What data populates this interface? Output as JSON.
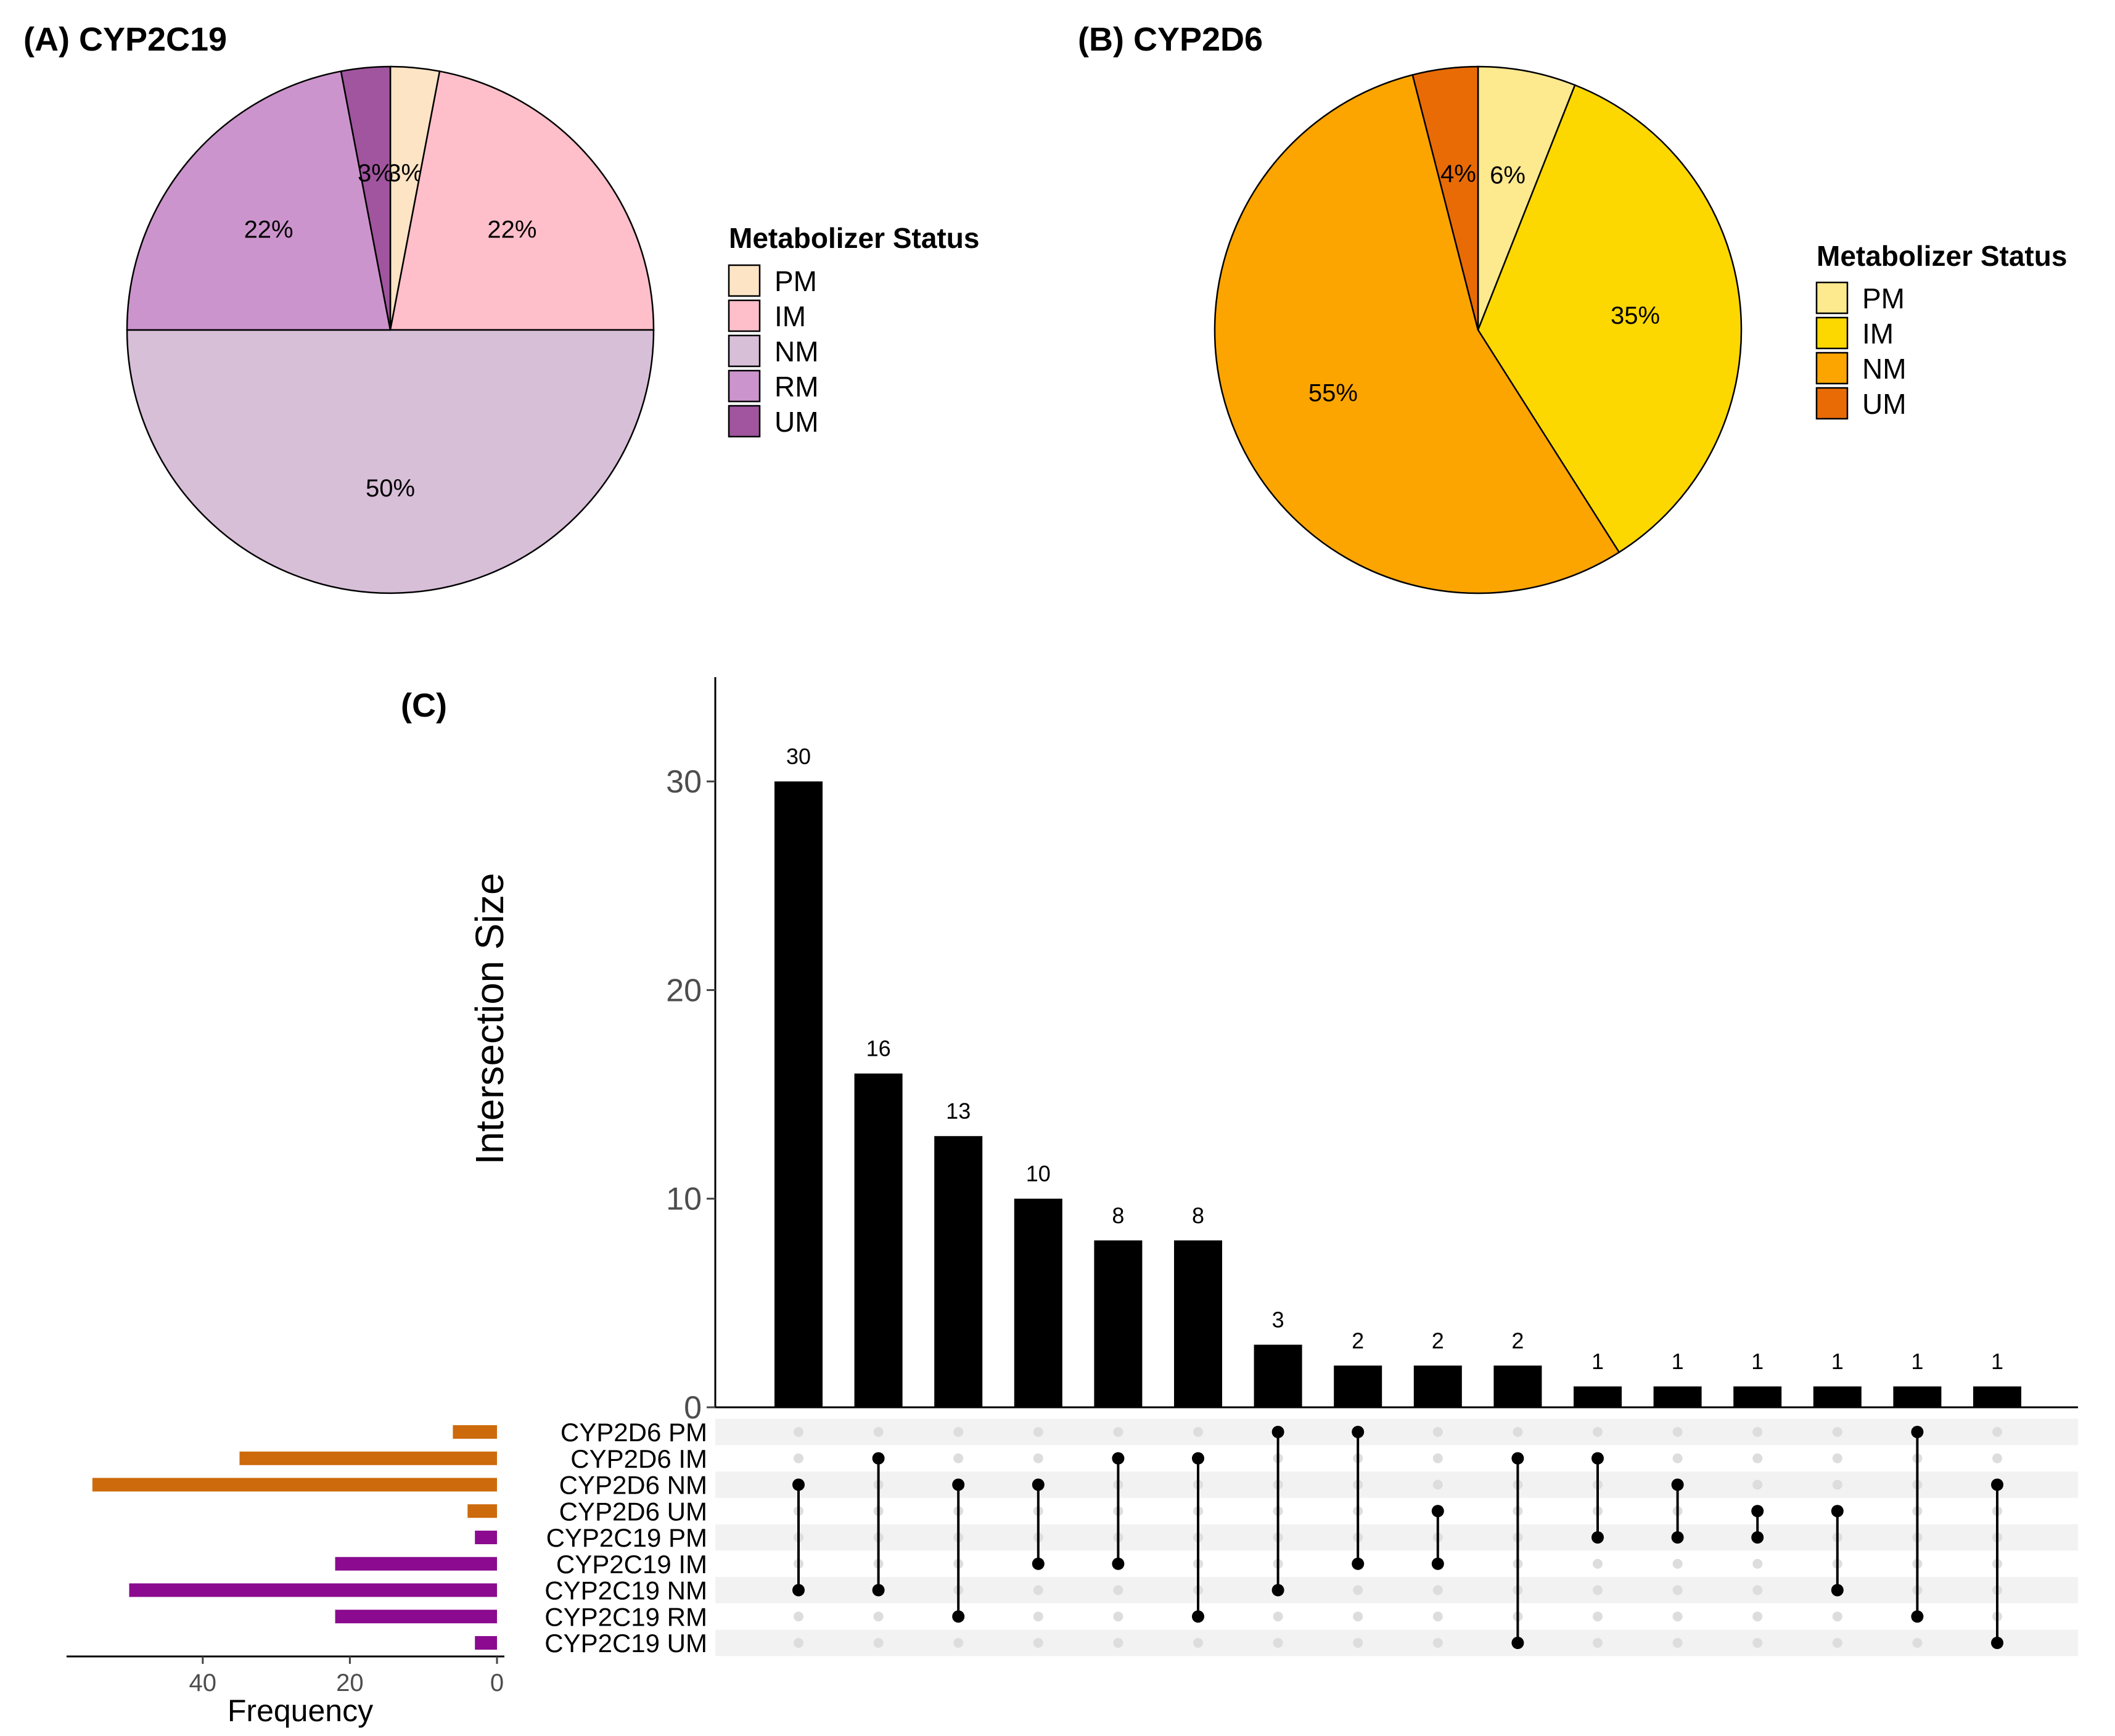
{
  "chart_data": [
    {
      "type": "pie",
      "title": "(A) CYP2C19",
      "legend_title": "Metabolizer Status",
      "legend_placement": "right",
      "categories": [
        "PM",
        "IM",
        "NM",
        "RM",
        "UM"
      ],
      "values": [
        3,
        22,
        50,
        22,
        3
      ],
      "labels": [
        "3%",
        "22%",
        "50%",
        "22%",
        "3%"
      ],
      "colors": [
        "#fde4c4",
        "#ffbfca",
        "#d8bfd8",
        "#cc94cc",
        "#a0559e"
      ]
    },
    {
      "type": "pie",
      "title": "(B) CYP2D6",
      "legend_title": "Metabolizer Status",
      "legend_placement": "right",
      "categories": [
        "PM",
        "IM",
        "NM",
        "UM"
      ],
      "values": [
        6,
        35,
        55,
        4
      ],
      "labels": [
        "6%",
        "35%",
        "55%",
        "4%"
      ],
      "colors": [
        "#fde98e",
        "#fdd800",
        "#fca500",
        "#e86b06"
      ]
    },
    {
      "type": "bar",
      "subtype": "upset",
      "title": "(C)",
      "ylabel": "Intersection Size",
      "ylim": [
        0,
        35
      ],
      "yticks": [
        0,
        10,
        20,
        30
      ],
      "values": [
        30,
        16,
        13,
        10,
        8,
        8,
        3,
        2,
        2,
        2,
        1,
        1,
        1,
        1,
        1,
        1
      ],
      "sets": [
        "CYP2D6 PM",
        "CYP2D6 IM",
        "CYP2D6 NM",
        "CYP2D6 UM",
        "CYP2C19 PM",
        "CYP2C19 IM",
        "CYP2C19 NM",
        "CYP2C19 RM",
        "CYP2C19 UM"
      ],
      "set_colors": [
        "#cd6a0c",
        "#cd6a0c",
        "#cd6a0c",
        "#cd6a0c",
        "#8b0a8f",
        "#8b0a8f",
        "#8b0a8f",
        "#8b0a8f",
        "#8b0a8f"
      ],
      "intersections": [
        [
          "CYP2D6 NM",
          "CYP2C19 NM"
        ],
        [
          "CYP2D6 IM",
          "CYP2C19 NM"
        ],
        [
          "CYP2D6 NM",
          "CYP2C19 RM"
        ],
        [
          "CYP2D6 NM",
          "CYP2C19 IM"
        ],
        [
          "CYP2D6 IM",
          "CYP2C19 IM"
        ],
        [
          "CYP2D6 IM",
          "CYP2C19 RM"
        ],
        [
          "CYP2D6 PM",
          "CYP2C19 NM"
        ],
        [
          "CYP2D6 PM",
          "CYP2C19 IM"
        ],
        [
          "CYP2D6 UM",
          "CYP2C19 IM"
        ],
        [
          "CYP2D6 IM",
          "CYP2C19 UM"
        ],
        [
          "CYP2D6 IM",
          "CYP2C19 PM"
        ],
        [
          "CYP2D6 NM",
          "CYP2C19 PM"
        ],
        [
          "CYP2D6 UM",
          "CYP2C19 PM"
        ],
        [
          "CYP2D6 UM",
          "CYP2C19 NM"
        ],
        [
          "CYP2D6 PM",
          "CYP2C19 RM"
        ],
        [
          "CYP2D6 NM",
          "CYP2C19 UM"
        ]
      ],
      "set_size_xlabel": "Frequency",
      "set_size_xticks": [
        40,
        20,
        0
      ],
      "set_size_xlim": [
        0,
        56
      ],
      "set_sizes": [
        6,
        35,
        55,
        4,
        3,
        22,
        50,
        22,
        3
      ]
    }
  ]
}
